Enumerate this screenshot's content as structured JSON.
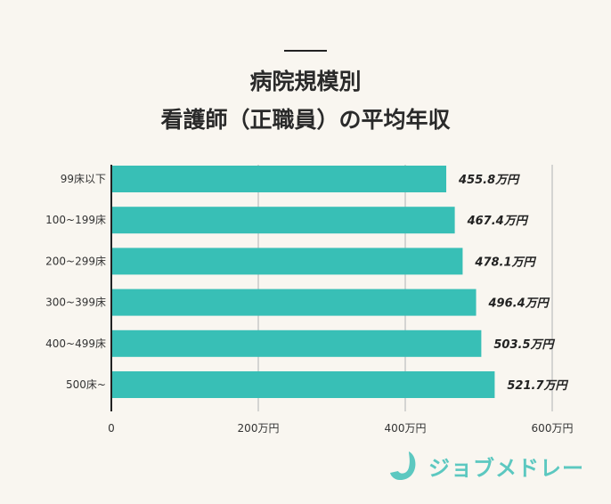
{
  "chart_data": {
    "type": "bar",
    "orientation": "horizontal",
    "title_lines": [
      "病院規模別",
      "看護師（正職員）の平均年収"
    ],
    "categories": [
      "99床以下",
      "100~199床",
      "200~299床",
      "300~399床",
      "400~499床",
      "500床~"
    ],
    "values": [
      455.8,
      467.4,
      478.1,
      496.4,
      503.5,
      521.7
    ],
    "data_labels": [
      "455.8万円",
      "467.4万円",
      "478.1万円",
      "496.4万円",
      "503.5万円",
      "521.7万円"
    ],
    "xlim": [
      0,
      600
    ],
    "xticks": [
      0,
      200,
      400,
      600
    ],
    "xtick_labels": [
      "0",
      "200万円",
      "400万円",
      "600万円"
    ],
    "grid": "vertical",
    "bar_color": "#38bfb6"
  },
  "logo": {
    "text": "ジョブメドレー",
    "color": "#5cc8c0"
  }
}
